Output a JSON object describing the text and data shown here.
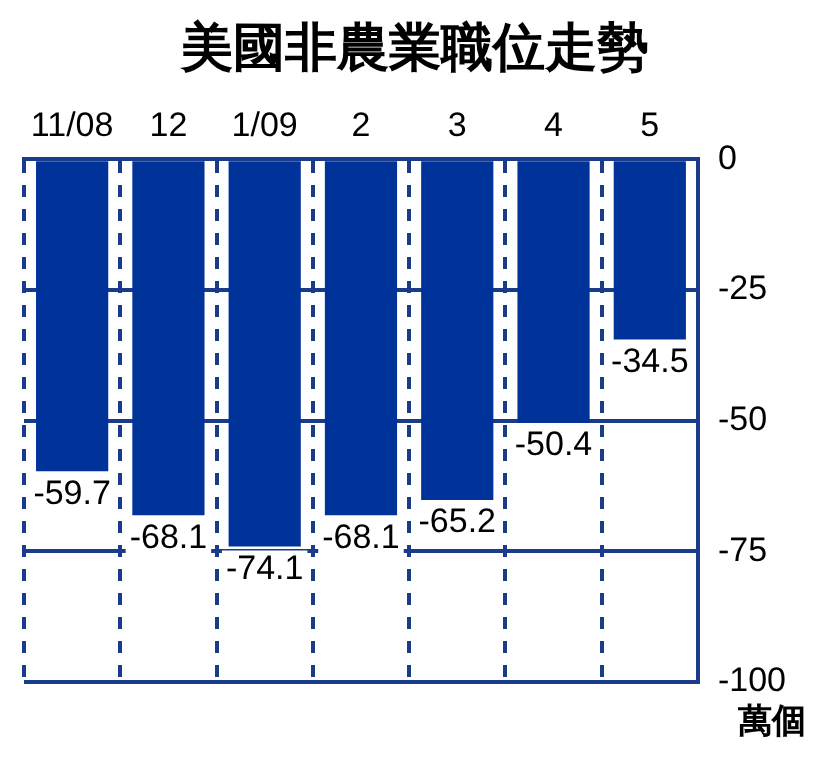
{
  "chart_data": {
    "type": "bar",
    "title": "美國非農業職位走勢",
    "ylabel": "萬個",
    "categories": [
      "11/08",
      "12",
      "1/09",
      "2",
      "3",
      "4",
      "5"
    ],
    "values": [
      -59.7,
      -68.1,
      -74.1,
      -68.1,
      -65.2,
      -50.4,
      -34.5
    ],
    "color": "#003399",
    "ylim": [
      -100,
      0
    ],
    "yticks": [
      0,
      -25,
      -50,
      -75,
      -100
    ],
    "grid": true,
    "data_labels": true
  }
}
